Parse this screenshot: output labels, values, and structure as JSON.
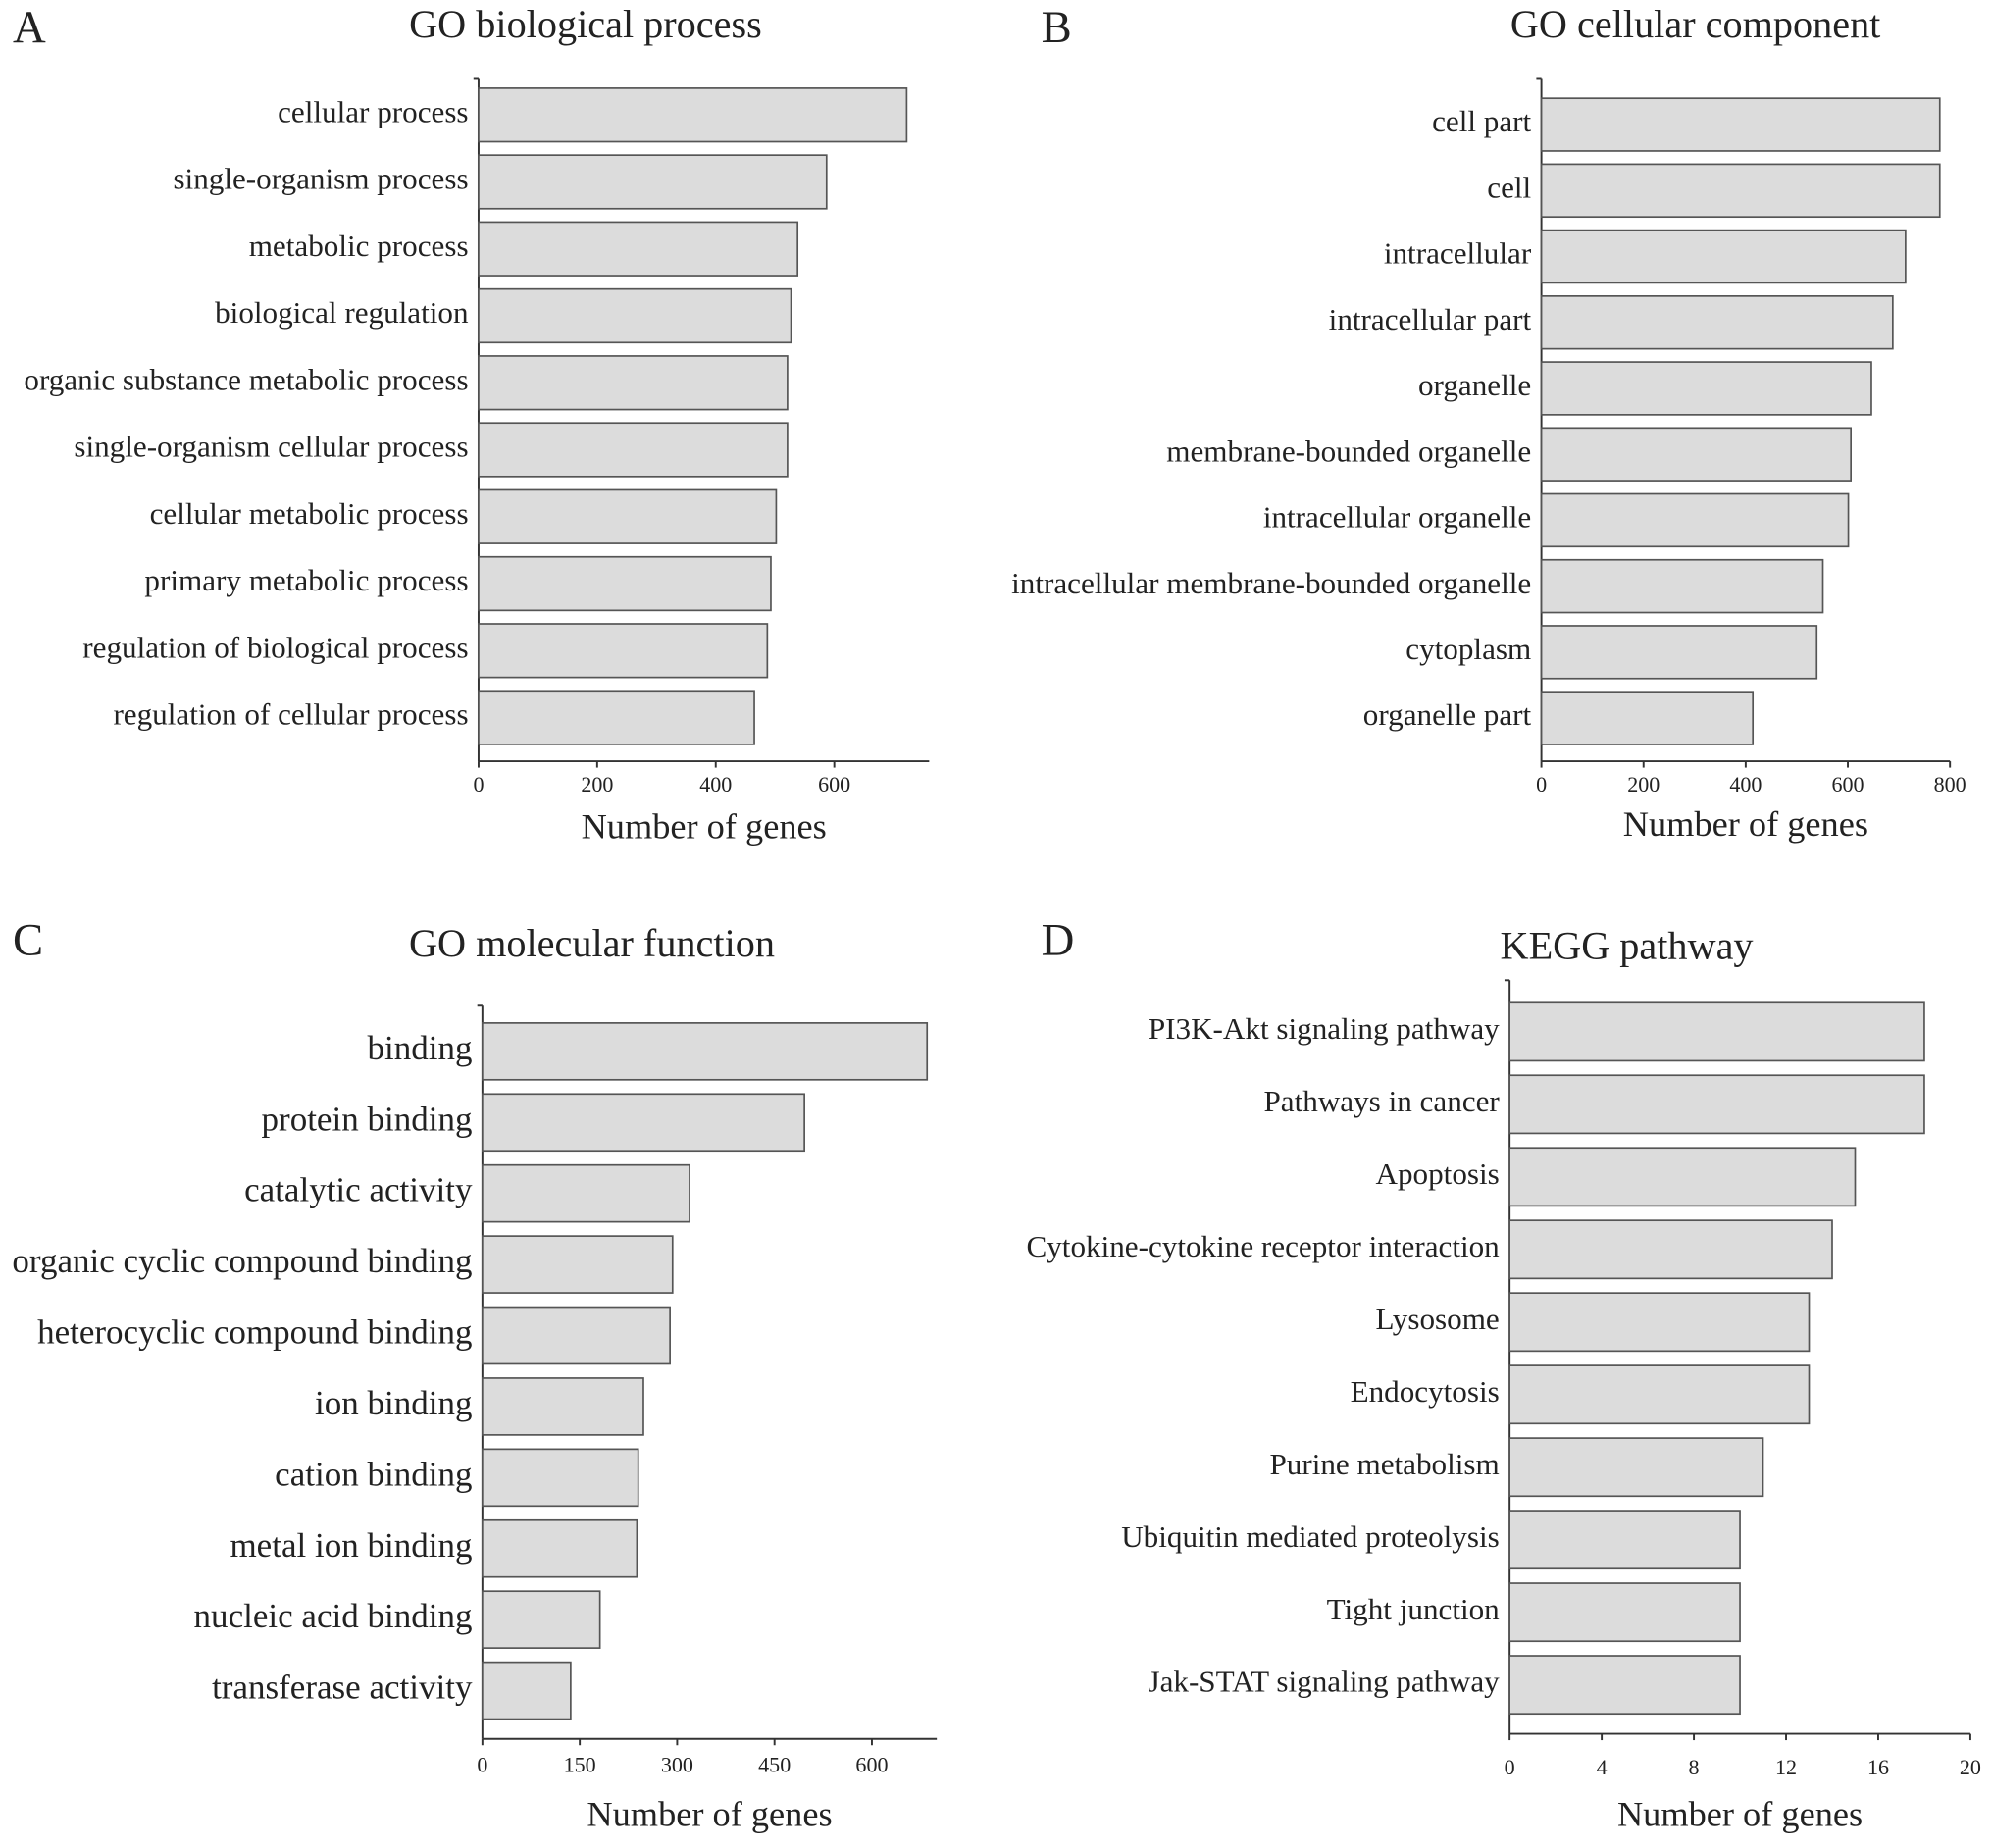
{
  "chart_data": [
    {
      "type": "bar",
      "orientation": "horizontal",
      "panel": "A",
      "title": "GO biological process",
      "x_label": "Number of genes",
      "categories": [
        "cellular process",
        "single-organism process",
        "metabolic process",
        "biological regulation",
        "organic substance metabolic process",
        "single-organism cellular process",
        "cellular metabolic process",
        "primary metabolic process",
        "regulation of biological process",
        "regulation of cellular process"
      ],
      "values": [
        722,
        587,
        538,
        527,
        521,
        521,
        502,
        493,
        487,
        465
      ],
      "color": "#dcdcdc",
      "xlim": [
        0,
        760
      ],
      "xticks": [
        0,
        200,
        400,
        600
      ]
    },
    {
      "type": "bar",
      "orientation": "horizontal",
      "panel": "B",
      "title": "GO cellular component",
      "x_label": "Number of genes",
      "categories": [
        "cell part",
        "cell",
        "intracellular",
        "intracellular part",
        "organelle",
        "membrane-bounded organelle",
        "intracellular organelle",
        "intracellular membrane-bounded organelle",
        "cytoplasm",
        "organelle part"
      ],
      "values": [
        780,
        780,
        713,
        688,
        646,
        606,
        601,
        551,
        539,
        414
      ],
      "color": "#dcdcdc",
      "xlim": [
        0,
        800
      ],
      "xticks": [
        0,
        200,
        400,
        600,
        800
      ]
    },
    {
      "type": "bar",
      "orientation": "horizontal",
      "panel": "C",
      "title": "GO molecular function",
      "x_label": "Number of genes",
      "categories": [
        "binding",
        "protein binding",
        "catalytic activity",
        "organic cyclic compound binding",
        "heterocyclic compound binding",
        "ion binding",
        "cation binding",
        "metal ion binding",
        "nucleic acid binding",
        "transferase activity"
      ],
      "values": [
        685,
        496,
        319,
        293,
        289,
        248,
        240,
        238,
        181,
        136
      ],
      "color": "#dcdcdc",
      "xlim": [
        0,
        700
      ],
      "xticks": [
        0,
        150,
        300,
        450,
        600
      ]
    },
    {
      "type": "bar",
      "orientation": "horizontal",
      "panel": "D",
      "title": "KEGG pathway",
      "x_label": "Number of genes",
      "categories": [
        "PI3K-Akt signaling pathway",
        "Pathways in cancer",
        "Apoptosis",
        "Cytokine-cytokine receptor interaction",
        "Lysosome",
        "Endocytosis",
        "Purine metabolism",
        "Ubiquitin mediated proteolysis",
        "Tight junction",
        "Jak-STAT signaling pathway"
      ],
      "values": [
        18,
        18,
        15,
        14,
        13,
        13,
        11,
        10,
        10,
        10
      ],
      "color": "#dcdcdc",
      "xlim": [
        0,
        20
      ],
      "xticks": [
        0,
        4,
        8,
        12,
        16,
        20
      ]
    }
  ]
}
